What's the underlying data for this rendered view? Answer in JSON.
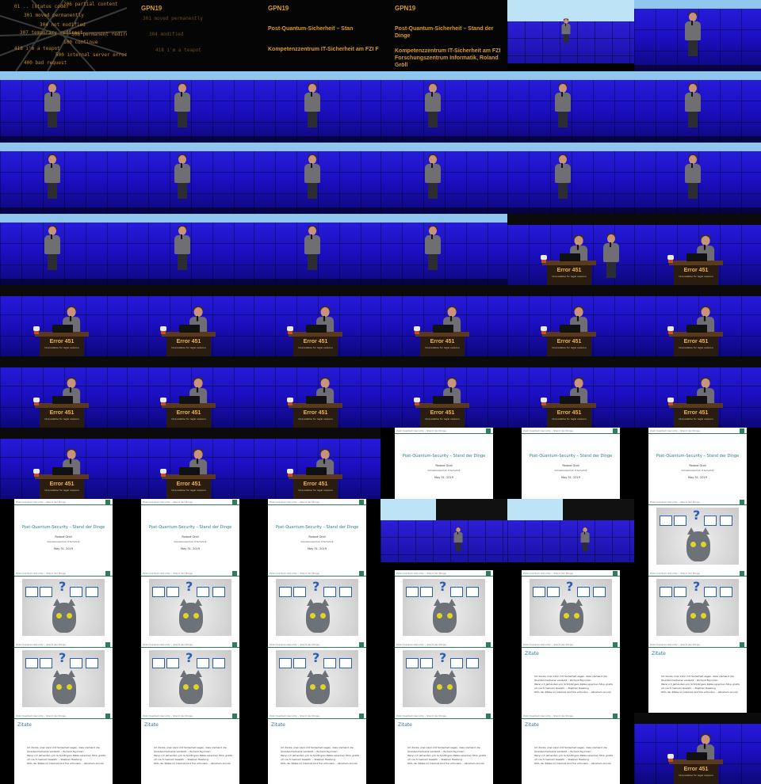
{
  "intro": {
    "codes": [
      "01 .. (status code)",
      "206 partial content",
      "301 moved permanently",
      "304 not modified",
      "307 temporary redirect",
      "308 permanent redirect",
      "100 continue",
      "418 i'm a teapot",
      "500 internal server error",
      "400 bad request"
    ],
    "event": "GPN19"
  },
  "title_card": {
    "event": "GPN19",
    "talk_title_short": "Post-Quantum-Sicherheit – Stan",
    "talk_title_full": "Post-Quantum-Sicherheit – Stand der Dinge",
    "org_short": "Kompetenzzentrum IT-Sicherheit am FZI F",
    "org_full": "Kompetenzzentrum IT-Sicherheit am FZI Forschungszentrum Informatik, Roland Gröll"
  },
  "lectern": {
    "sign": "Error 451",
    "sub": "Unavailable for legal reasons"
  },
  "slide_title": {
    "header": "Post-Quantum-Security – Stand der Dinge",
    "title": "Post-Quantum-Security – Stand der Dinge",
    "author": "Roland Groll",
    "institution": "Kompetenzzentrum IT-Sicherheit",
    "date": "May 31, 2019"
  },
  "slide_quote": {
    "header": "Post-Quantum-Security – Stand der Dinge",
    "title": "Zitate",
    "lines": [
      "Ich denke, man kann mit Sicherheit sagen, dass niemand die Quantenmechanik versteht. – Richard Feynman",
      "Wenn ich jemanden von Schrödingers Katze sprechen höre, greife ich nach meinem Gewehr. – Stephen Hawking",
      "90% der Zitate im Internet sind frei erfunden. – Abraham Lincoln"
    ]
  },
  "tiles": [
    "intro",
    "title-1",
    "title-2",
    "title-3",
    "wide",
    "stage",
    "stage",
    "stage",
    "stage",
    "stage",
    "stage",
    "stage",
    "stage",
    "stage",
    "stage",
    "stage",
    "stage",
    "stage",
    "stage",
    "stage",
    "stage",
    "stage",
    "lec-swap",
    "lec",
    "lec",
    "lec",
    "lec",
    "lec",
    "lec",
    "lec",
    "lec",
    "lec",
    "lec",
    "lec",
    "lec",
    "lec",
    "lec",
    "lec",
    "lec",
    "slide-title",
    "slide-title",
    "slide-title",
    "slide-title",
    "slide-title",
    "slide-title",
    "wide-lec",
    "wide-lec",
    "slide-cat",
    "slide-cat",
    "slide-cat",
    "slide-cat",
    "slide-cat",
    "slide-cat",
    "slide-cat",
    "slide-cat",
    "slide-cat",
    "slide-cat",
    "slide-cat",
    "slide-quote",
    "slide-quote",
    "slide-quote",
    "slide-quote",
    "slide-quote",
    "slide-quote",
    "slide-quote",
    "lec"
  ]
}
